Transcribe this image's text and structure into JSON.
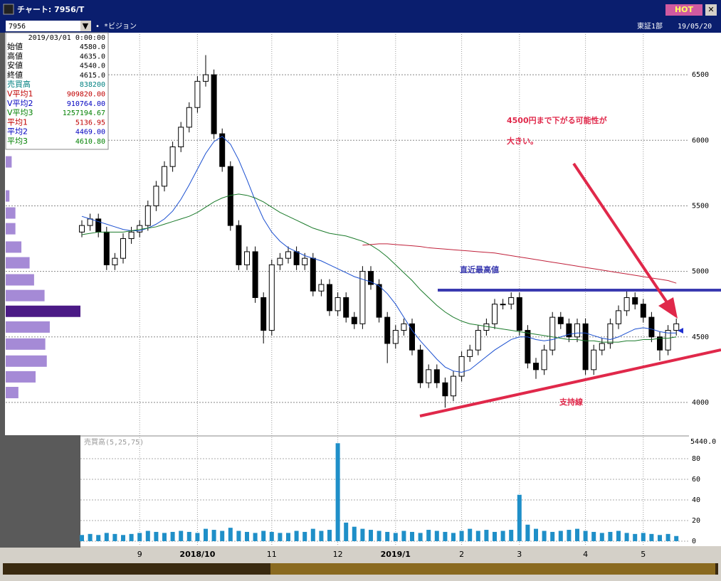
{
  "window": {
    "title": "チャート: 7956/T",
    "hot": "HOT",
    "ticker": "7956",
    "name": "ビジョン",
    "market": "東証1部",
    "date": "19/05/20"
  },
  "info": {
    "datetime": "2019/03/01  0:00:00",
    "rows": [
      {
        "label": "始値",
        "value": "4580.0",
        "color": "#000000"
      },
      {
        "label": "高値",
        "value": "4635.0",
        "color": "#000000"
      },
      {
        "label": "安値",
        "value": "4540.0",
        "color": "#000000"
      },
      {
        "label": "終値",
        "value": "4615.0",
        "color": "#000000"
      },
      {
        "label": "売買高",
        "value": "838200",
        "color": "#008080"
      },
      {
        "label": "V平均1",
        "value": "909820.00",
        "color": "#c00000"
      },
      {
        "label": "V平均2",
        "value": "910764.00",
        "color": "#0000c0"
      },
      {
        "label": "V平均3",
        "value": "1257194.67",
        "color": "#008000"
      },
      {
        "label": "平均1",
        "value": "5136.95",
        "color": "#c00000"
      },
      {
        "label": "平均2",
        "value": "4469.00",
        "color": "#0000c0"
      },
      {
        "label": "平均3",
        "value": "4610.80",
        "color": "#008000"
      }
    ]
  },
  "chart_data": [
    {
      "type": "candlestick",
      "annotations": [
        "4500円まで下がる可能性が",
        "大きい。",
        "直近最高値",
        "支持線"
      ],
      "categories": [
        null,
        null,
        null,
        null,
        null,
        null,
        null,
        "9",
        null,
        null,
        null,
        null,
        null,
        null,
        "2018/10",
        null,
        null,
        null,
        null,
        null,
        null,
        null,
        null,
        "11",
        null,
        null,
        null,
        null,
        null,
        null,
        null,
        "12",
        null,
        null,
        null,
        null,
        null,
        null,
        "2019/1",
        null,
        null,
        null,
        null,
        null,
        null,
        null,
        "2",
        null,
        null,
        null,
        null,
        null,
        null,
        "3",
        null,
        null,
        null,
        null,
        null,
        null,
        null,
        "4",
        null,
        null,
        null,
        null,
        null,
        null,
        "5",
        null,
        null,
        null,
        null
      ],
      "open": [
        5300,
        5350,
        5400,
        5300,
        5050,
        5100,
        5250,
        5300,
        5350,
        5500,
        5650,
        5800,
        5950,
        6100,
        6250,
        6450,
        6500,
        6050,
        5800,
        5350,
        5050,
        5150,
        4800,
        4550,
        5050,
        5100,
        5150,
        5050,
        5100,
        4850,
        4900,
        4700,
        4800,
        4650,
        4600,
        5000,
        4900,
        4650,
        4450,
        4550,
        4600,
        4400,
        4150,
        4250,
        4150,
        4050,
        4200,
        4350,
        4400,
        4550,
        4600,
        4750,
        4750,
        4800,
        4550,
        4300,
        4250,
        4400,
        4650,
        4600,
        4500,
        4600,
        4250,
        4400,
        4450,
        4600,
        4700,
        4800,
        4750,
        4650,
        4500,
        4400,
        4550
      ],
      "high": [
        5390,
        5440,
        5440,
        5340,
        5140,
        5290,
        5340,
        5390,
        5540,
        5690,
        5840,
        5990,
        6140,
        6290,
        6490,
        6650,
        6540,
        6090,
        5840,
        5390,
        5190,
        5190,
        4840,
        5090,
        5140,
        5190,
        5190,
        5140,
        5140,
        4940,
        4940,
        4840,
        4840,
        4690,
        5040,
        5040,
        4940,
        4690,
        4590,
        4640,
        4640,
        4440,
        4290,
        4290,
        4190,
        4240,
        4390,
        4440,
        4590,
        4640,
        4790,
        4790,
        4840,
        4840,
        4590,
        4340,
        4440,
        4690,
        4690,
        4640,
        4640,
        4640,
        4440,
        4490,
        4640,
        4740,
        4860,
        4840,
        4790,
        4690,
        4540,
        4590,
        4640
      ],
      "low": [
        5260,
        5310,
        5260,
        5010,
        5010,
        5060,
        5210,
        5260,
        5310,
        5460,
        5610,
        5760,
        5910,
        6060,
        6210,
        6410,
        6010,
        5760,
        5310,
        5010,
        5010,
        4760,
        4450,
        4510,
        5010,
        5060,
        5010,
        5010,
        4810,
        4810,
        4660,
        4660,
        4610,
        4560,
        4560,
        4860,
        4610,
        4300,
        4410,
        4510,
        4360,
        4110,
        4110,
        4110,
        3960,
        4010,
        4160,
        4310,
        4360,
        4510,
        4560,
        4710,
        4710,
        4510,
        4260,
        4180,
        4210,
        4360,
        4560,
        4460,
        4460,
        4210,
        4210,
        4360,
        4410,
        4560,
        4660,
        4710,
        4610,
        4460,
        4320,
        4360,
        4510
      ],
      "close": [
        5350,
        5400,
        5300,
        5050,
        5100,
        5250,
        5300,
        5350,
        5500,
        5650,
        5800,
        5950,
        6100,
        6250,
        6450,
        6500,
        6050,
        5800,
        5350,
        5050,
        5150,
        4800,
        4550,
        5050,
        5100,
        5150,
        5050,
        5100,
        4850,
        4900,
        4700,
        4800,
        4650,
        4600,
        5000,
        4900,
        4650,
        4450,
        4550,
        4600,
        4400,
        4150,
        4250,
        4150,
        4050,
        4200,
        4350,
        4400,
        4550,
        4600,
        4750,
        4750,
        4800,
        4550,
        4300,
        4250,
        4400,
        4650,
        4600,
        4500,
        4600,
        4250,
        4400,
        4450,
        4600,
        4700,
        4800,
        4750,
        4650,
        4500,
        4400,
        4550,
        4600
      ],
      "series": [
        {
          "color": "#1a4fd0",
          "values": [
            5420,
            5400,
            5380,
            5360,
            5340,
            5320,
            5310,
            5310,
            5330,
            5360,
            5400,
            5460,
            5550,
            5660,
            5780,
            5900,
            5990,
            6030,
            5970,
            5850,
            5700,
            5540,
            5400,
            5300,
            5230,
            5180,
            5150,
            5120,
            5100,
            5080,
            5050,
            5020,
            4990,
            4960,
            4940,
            4920,
            4890,
            4830,
            4750,
            4650,
            4550,
            4470,
            4400,
            4330,
            4270,
            4240,
            4230,
            4250,
            4300,
            4350,
            4400,
            4440,
            4480,
            4500,
            4500,
            4480,
            4470,
            4480,
            4500,
            4520,
            4530,
            4530,
            4510,
            4490,
            4480,
            4500,
            4530,
            4560,
            4570,
            4560,
            4540,
            4530,
            4530
          ]
        },
        {
          "color": "#1a7a2a",
          "values": [
            5280,
            5290,
            5300,
            5300,
            5300,
            5300,
            5310,
            5320,
            5330,
            5340,
            5360,
            5380,
            5400,
            5420,
            5450,
            5490,
            5530,
            5560,
            5580,
            5590,
            5580,
            5560,
            5530,
            5490,
            5450,
            5420,
            5390,
            5360,
            5330,
            5310,
            5290,
            5280,
            5270,
            5250,
            5230,
            5200,
            5160,
            5110,
            5050,
            4990,
            4930,
            4860,
            4800,
            4740,
            4690,
            4650,
            4620,
            4600,
            4590,
            4580,
            4570,
            4560,
            4550,
            4540,
            4530,
            4520,
            4510,
            4500,
            4490,
            4480,
            4480,
            4470,
            4470,
            4460,
            4460,
            4460,
            4470,
            4470,
            4480,
            4480,
            4490,
            4490,
            4500
          ]
        },
        {
          "color": "#c0203a",
          "values": [
            null,
            null,
            null,
            null,
            null,
            null,
            null,
            null,
            null,
            null,
            null,
            null,
            null,
            null,
            null,
            null,
            null,
            null,
            null,
            null,
            null,
            null,
            null,
            null,
            null,
            null,
            null,
            null,
            null,
            null,
            null,
            null,
            null,
            null,
            5200,
            5205,
            5210,
            5210,
            5205,
            5200,
            5195,
            5190,
            5180,
            5175,
            5170,
            5165,
            5160,
            5155,
            5150,
            5145,
            5140,
            5130,
            5120,
            5110,
            5100,
            5090,
            5080,
            5070,
            5060,
            5050,
            5040,
            5030,
            5020,
            5010,
            5000,
            4990,
            4980,
            4970,
            4960,
            4950,
            4940,
            4930,
            4910
          ]
        }
      ],
      "ylim": [
        3750,
        6810
      ],
      "yticks": [
        4000,
        4500,
        5000,
        5500,
        6000,
        6500
      ],
      "profile": {
        "prices": [
          5985,
          5830,
          5570,
          5440,
          5320,
          5180,
          5060,
          4930,
          4810,
          4690,
          4570,
          4440,
          4310,
          4190,
          4070
        ],
        "values": [
          8,
          8,
          5,
          13,
          13,
          21,
          32,
          38,
          52,
          100,
          59,
          53,
          55,
          40,
          17
        ],
        "color": "#a58ad6",
        "highlight_color": "#4b1a86",
        "highlight": 9
      }
    },
    {
      "type": "bar",
      "title": "売買高(5,25,75)",
      "max_label": "5440.0",
      "color": "#1f8fc8",
      "values": [
        6,
        7,
        6,
        8,
        7,
        6,
        7,
        8,
        10,
        9,
        8,
        9,
        10,
        9,
        8,
        12,
        11,
        10,
        13,
        10,
        9,
        8,
        10,
        9,
        8,
        8,
        10,
        9,
        12,
        10,
        11,
        95,
        18,
        14,
        12,
        11,
        10,
        9,
        8,
        10,
        9,
        8,
        11,
        10,
        9,
        8,
        10,
        12,
        10,
        11,
        9,
        10,
        11,
        45,
        16,
        12,
        10,
        9,
        10,
        11,
        12,
        10,
        9,
        8,
        9,
        10,
        8,
        7,
        8,
        7,
        6,
        7,
        5
      ],
      "ylim": [
        0,
        100
      ],
      "yticks": [
        0,
        20,
        40,
        60,
        80
      ]
    }
  ]
}
